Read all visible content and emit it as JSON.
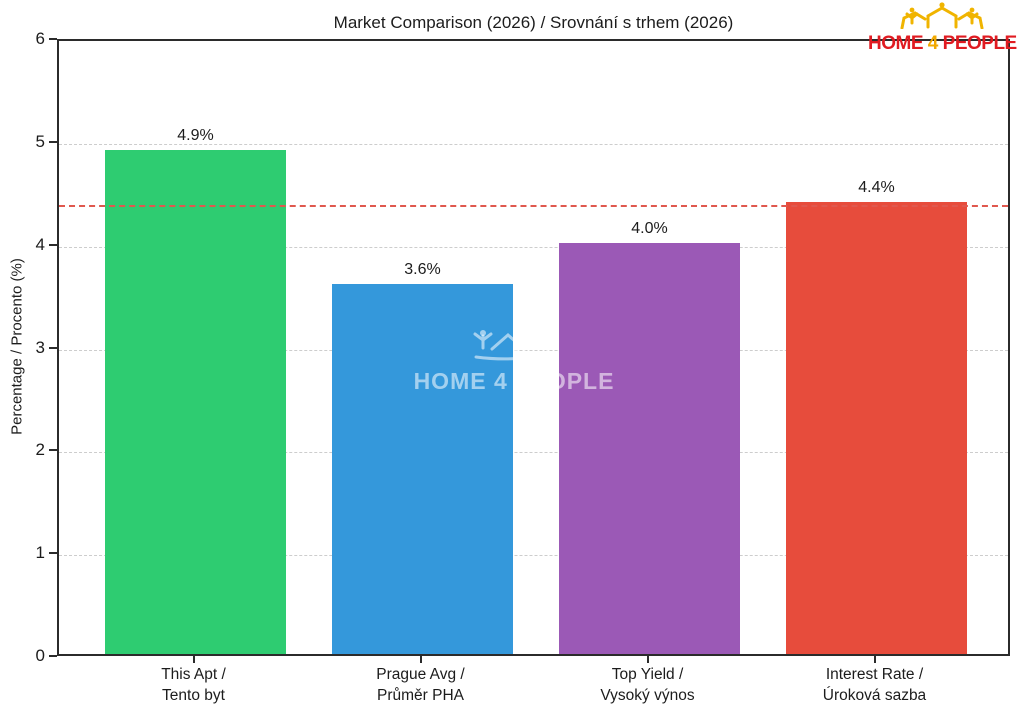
{
  "header": {
    "title": "Market Comparison (2026) / Srovnání s trhem (2026)"
  },
  "logo": {
    "word1": "HOME",
    "word2": "4",
    "word3": "PEOPLE",
    "text_color": "#e01b21",
    "accent_color": "#f2a900",
    "icon": "home4people-crown-icon",
    "icon_color": "#f0b400"
  },
  "watermark": {
    "text": "HOME 4 PEOPLE",
    "icon": "house-people-watermark-icon",
    "color": "rgba(255,255,255,0.55)"
  },
  "chart_data": {
    "type": "bar",
    "title": "Market Comparison (2026) / Srovnání s trhem (2026)",
    "xlabel": "",
    "ylabel": "Percentage / Procento (%)",
    "ylim": [
      0,
      6
    ],
    "yticks": [
      0,
      1,
      2,
      3,
      4,
      5,
      6
    ],
    "grid": "horizontal dashed gridlines at integer values 1-5",
    "legend": "none",
    "categories": [
      {
        "line1": "This Apt /",
        "line2": "Tento byt"
      },
      {
        "line1": "Prague Avg /",
        "line2": "Průměr PHA"
      },
      {
        "line1": "Top Yield /",
        "line2": "Vysoký výnos"
      },
      {
        "line1": "Interest Rate /",
        "line2": "Úroková sazba"
      }
    ],
    "values": [
      4.9,
      3.6,
      4.0,
      4.4
    ],
    "value_labels": [
      "4.9%",
      "3.6%",
      "4.0%",
      "4.4%"
    ],
    "bar_colors": [
      "#2ecc71",
      "#3498db",
      "#9b59b6",
      "#e74c3c"
    ],
    "reference_line": {
      "value": 4.4,
      "style": "dashed",
      "color": "#e0584e"
    }
  }
}
